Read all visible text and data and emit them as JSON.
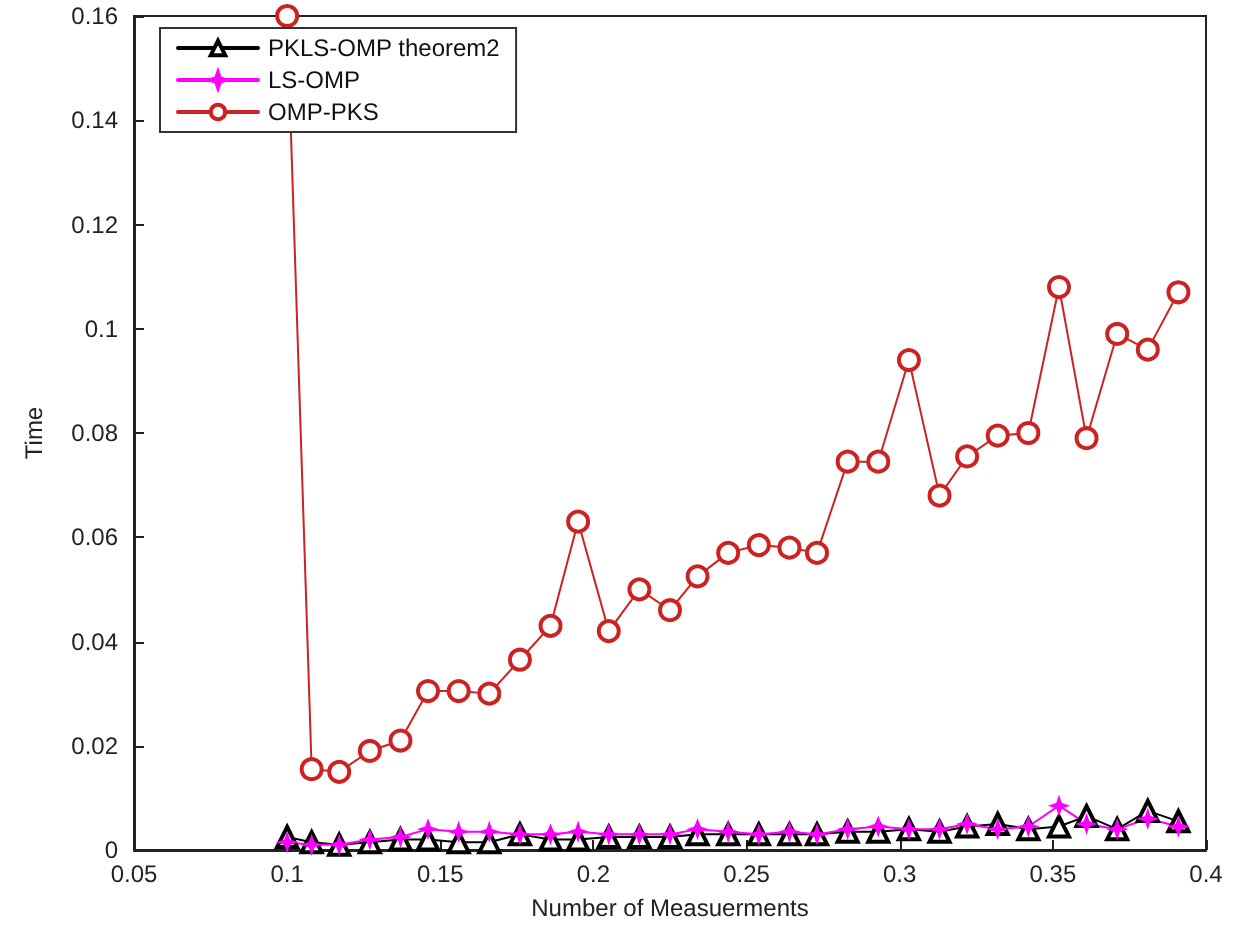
{
  "chart_data": {
    "type": "line",
    "xlabel": "Number of Measuerments",
    "ylabel": "Time",
    "x": [
      0.1,
      0.108,
      0.117,
      0.127,
      0.137,
      0.146,
      0.156,
      0.166,
      0.176,
      0.186,
      0.195,
      0.205,
      0.215,
      0.225,
      0.234,
      0.244,
      0.254,
      0.264,
      0.273,
      0.283,
      0.293,
      0.303,
      0.313,
      0.322,
      0.332,
      0.342,
      0.352,
      0.361,
      0.371,
      0.381,
      0.391
    ],
    "series": [
      {
        "name": "PKLS-OMP theorem2",
        "color": "#000000",
        "marker": "triangle",
        "values": [
          0.0025,
          0.0015,
          0.001,
          0.0015,
          0.002,
          0.002,
          0.0015,
          0.0015,
          0.003,
          0.002,
          0.002,
          0.0025,
          0.0025,
          0.0025,
          0.003,
          0.003,
          0.003,
          0.003,
          0.003,
          0.0035,
          0.0035,
          0.004,
          0.0035,
          0.0045,
          0.005,
          0.004,
          0.0045,
          0.0065,
          0.004,
          0.0075,
          0.0055
        ]
      },
      {
        "name": "LS-OMP",
        "color": "#ff00ff",
        "marker": "star",
        "values": [
          0.0015,
          0.001,
          0.001,
          0.002,
          0.0025,
          0.004,
          0.0035,
          0.0035,
          0.003,
          0.003,
          0.0035,
          0.003,
          0.003,
          0.003,
          0.004,
          0.0035,
          0.003,
          0.0035,
          0.003,
          0.004,
          0.0045,
          0.004,
          0.004,
          0.005,
          0.004,
          0.0045,
          0.0085,
          0.005,
          0.004,
          0.006,
          0.0045
        ]
      },
      {
        "name": "OMP-PKS",
        "color": "#cc2222",
        "marker": "circle",
        "values": [
          0.16,
          0.0155,
          0.015,
          0.019,
          0.021,
          0.0305,
          0.0305,
          0.03,
          0.0365,
          0.043,
          0.063,
          0.042,
          0.05,
          0.046,
          0.0525,
          0.057,
          0.0585,
          0.058,
          0.057,
          0.0745,
          0.0745,
          0.094,
          0.068,
          0.0755,
          0.0795,
          0.08,
          0.108,
          0.079,
          0.099,
          0.096,
          0.107
        ]
      }
    ],
    "xlim": [
      0.05,
      0.4
    ],
    "xticks": [
      0.05,
      0.1,
      0.15,
      0.2,
      0.25,
      0.3,
      0.35,
      0.4
    ],
    "ylim": [
      0,
      0.16
    ],
    "yticks": [
      0,
      0.02,
      0.04,
      0.06,
      0.08,
      0.1,
      0.12,
      0.14,
      0.16
    ],
    "grid": false,
    "legend": "top left",
    "line_style": "solid"
  }
}
